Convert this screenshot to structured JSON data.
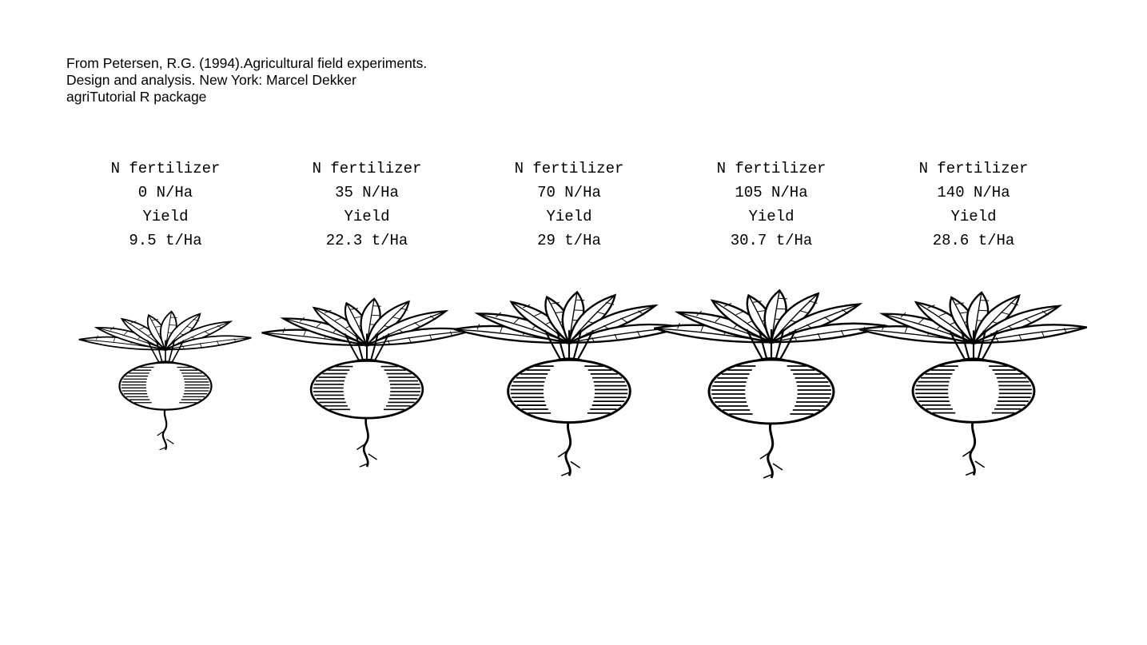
{
  "source": {
    "lines": [
      "From Petersen, R.G. (1994).Agricultural field experiments.",
      "Design and analysis. New York: Marcel Dekker",
      "agriTutorial R package"
    ]
  },
  "chart_data": {
    "type": "pictogram",
    "icon": "beet-icon",
    "marks_encode": "yield (beet size)",
    "category_heading": "N fertilizer",
    "value_heading": "Yield",
    "categories": [
      "0 N/Ha",
      "35 N/Ha",
      "70 N/Ha",
      "105 N/Ha",
      "140 N/Ha"
    ],
    "values": [
      9.5,
      22.3,
      29,
      30.7,
      28.6
    ],
    "value_labels": [
      "9.5 t/Ha",
      "22.3 t/Ha",
      "29 t/Ha",
      "30.7 t/Ha",
      "28.6 t/Ha"
    ],
    "colors": {
      "ink": "#000000",
      "background": "#ffffff"
    }
  }
}
